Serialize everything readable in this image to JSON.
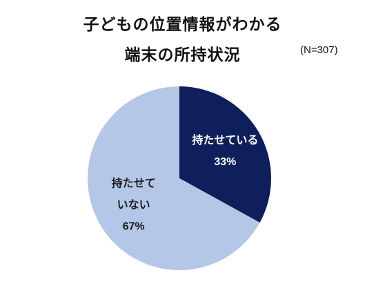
{
  "chart_data": {
    "type": "pie",
    "title": "子どもの位置情報がわかる",
    "title_line2": "端末の所持状況",
    "subtitle": "(N=307)",
    "categories": [
      "持たせている",
      "持たせていない"
    ],
    "values": [
      33,
      67
    ],
    "value_labels": [
      "33%",
      "67%"
    ],
    "colors": [
      "#0e1f5b",
      "#b4c7e7"
    ],
    "label_colors": [
      "#ffffff",
      "#1a1a1a"
    ],
    "start_angle": 0,
    "direction": "clockwise"
  }
}
